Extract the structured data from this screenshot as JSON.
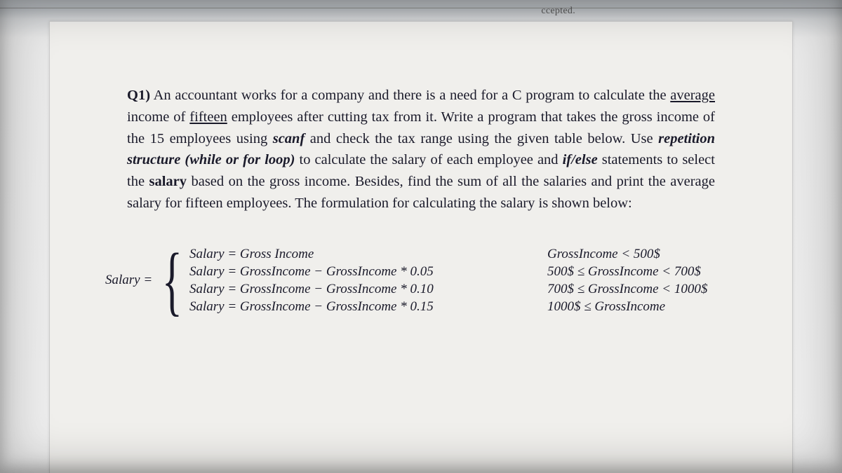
{
  "cutoff_fragment": "ccepted.",
  "question": {
    "label": "Q1)",
    "text_parts": {
      "p1": "An accountant works for a company and there is a need for a C program to calculate the ",
      "p2_u": "average",
      "p3": " income of ",
      "p4_u": "fifteen",
      "p5": " employees after cutting tax from it. Write a program that takes the gross income of the 15 employees using ",
      "p6_bi": "scanf",
      "p7": " and check the tax range using the given table below. Use ",
      "p8_bi": "repetition structure (while or for loop)",
      "p9": " to calculate the salary of each employee and ",
      "p10_bi": "if/else",
      "p11": " statements to select the ",
      "p12_b": "salary",
      "p13": " based on the gross income. Besides, find the sum of all the salaries and print the average salary for fifteen employees. The formulation for calculating the salary is shown below:"
    }
  },
  "formula": {
    "lhs": "Salary =",
    "cases": [
      {
        "expr": "Salary = Gross Income",
        "cond": "GrossIncome < 500$"
      },
      {
        "expr": "Salary = GrossIncome − GrossIncome * 0.05",
        "cond": "500$ ≤ GrossIncome < 700$"
      },
      {
        "expr": "Salary = GrossIncome − GrossIncome * 0.10",
        "cond": "700$ ≤ GrossIncome < 1000$"
      },
      {
        "expr": "Salary = GrossIncome − GrossIncome * 0.15",
        "cond": "1000$ ≤ GrossIncome"
      }
    ]
  },
  "colors": {
    "page_bg": "#f0efec",
    "text": "#1a1a2a",
    "frame": "#b4b8bc"
  },
  "typography": {
    "body_font": "Times New Roman",
    "body_size_pt": 15,
    "formula_size_pt": 14
  }
}
